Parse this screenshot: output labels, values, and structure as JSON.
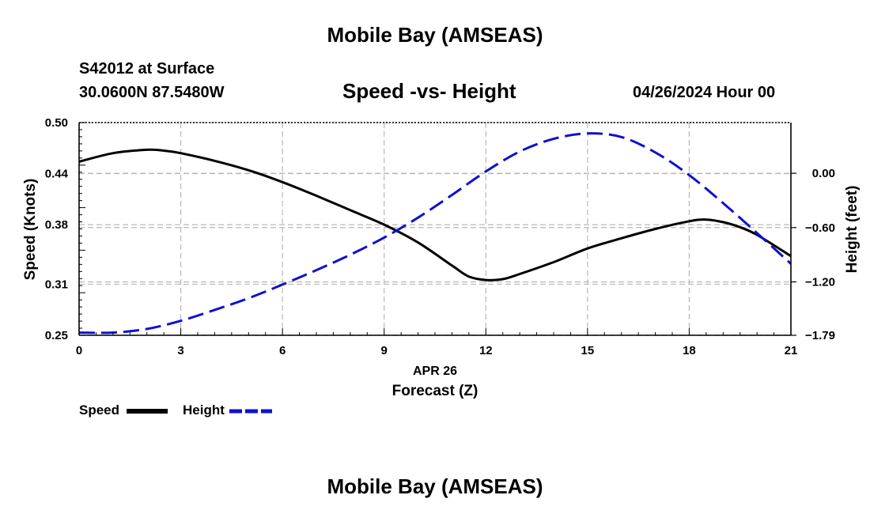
{
  "page": {
    "title_top": "Mobile Bay (AMSEAS)",
    "title_bottom": "Mobile Bay (AMSEAS)",
    "station": "S42012 at Surface",
    "coordinates": "30.0600N  87.5480W",
    "datetime": "04/26/2024 Hour 00"
  },
  "legend": {
    "speed_label": "Speed",
    "height_label": "Height"
  },
  "colors": {
    "speed": "#000000",
    "height": "#1010d0",
    "grid": "#b8b8b8"
  },
  "chart_data": {
    "type": "line",
    "title": "Speed -vs- Height",
    "xlabel": "Forecast (Z)",
    "xlabel_date": "APR 26",
    "ylabel_left": "Speed (Knots)",
    "ylabel_right": "Height (feet)",
    "xlim": [
      0,
      21
    ],
    "x_ticks": [
      0,
      3,
      6,
      9,
      12,
      15,
      18,
      21
    ],
    "ylim_left": [
      0.25,
      0.5
    ],
    "y_ticks_left": [
      "0.25",
      "0.31",
      "0.38",
      "0.44",
      "0.50"
    ],
    "ylim_right": [
      -1.79,
      0.56
    ],
    "y_ticks_right": [
      "−1.79",
      "−1.20",
      "−0.60",
      "0.00"
    ],
    "grid": true,
    "legend_position": "bottom-left",
    "series": [
      {
        "name": "Speed",
        "axis": "left",
        "style": "solid",
        "x": [
          0,
          1,
          2,
          2.5,
          3,
          4,
          5,
          6,
          7,
          8,
          9,
          10,
          11,
          11.5,
          12,
          12.5,
          13,
          14,
          15,
          16,
          17,
          18,
          18.5,
          19,
          19.5,
          20,
          21
        ],
        "values": [
          0.454,
          0.464,
          0.468,
          0.467,
          0.464,
          0.455,
          0.444,
          0.43,
          0.414,
          0.397,
          0.38,
          0.359,
          0.332,
          0.319,
          0.315,
          0.316,
          0.322,
          0.336,
          0.352,
          0.364,
          0.375,
          0.384,
          0.386,
          0.383,
          0.377,
          0.368,
          0.343
        ]
      },
      {
        "name": "Height",
        "axis": "right",
        "style": "dashed",
        "x": [
          0,
          1,
          2,
          3,
          4,
          5,
          6,
          7,
          8,
          9,
          10,
          11,
          12,
          13,
          14,
          15,
          16,
          17,
          18,
          19,
          20,
          21
        ],
        "values": [
          -1.76,
          -1.76,
          -1.72,
          -1.63,
          -1.51,
          -1.38,
          -1.23,
          -1.07,
          -0.9,
          -0.71,
          -0.49,
          -0.24,
          0.02,
          0.24,
          0.38,
          0.44,
          0.4,
          0.23,
          -0.02,
          -0.33,
          -0.66,
          -1.0
        ]
      }
    ]
  }
}
